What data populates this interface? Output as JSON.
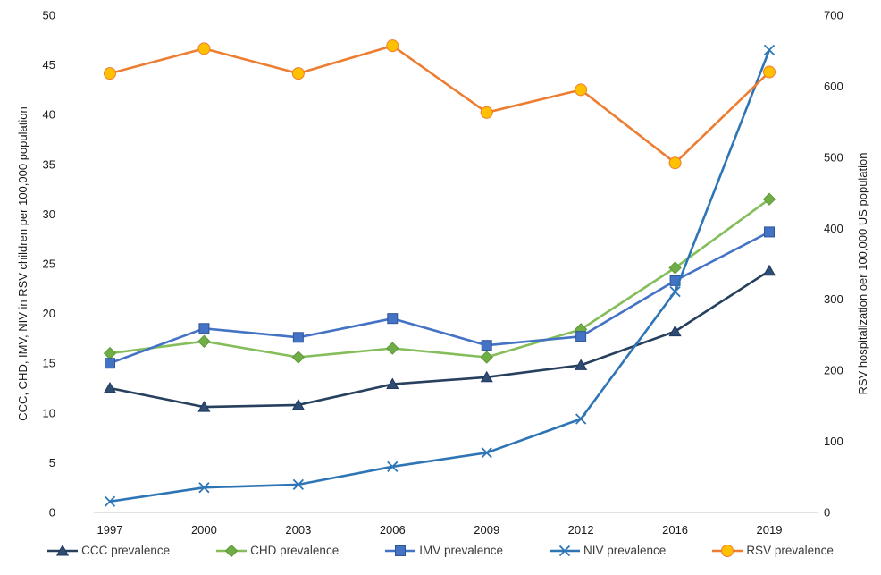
{
  "chart_data": {
    "type": "line",
    "title": "",
    "categories": [
      "1997",
      "2000",
      "2003",
      "2006",
      "2009",
      "2012",
      "2016",
      "2019"
    ],
    "axes": {
      "left": {
        "label": "CCC, CHD, IMV, NIV in RSV children per 100,000 population",
        "min": 0,
        "max": 50,
        "step": 5,
        "ticks": [
          "0",
          "5",
          "10",
          "15",
          "20",
          "25",
          "30",
          "35",
          "40",
          "45",
          "50"
        ]
      },
      "right": {
        "label": "RSV hospitalization oer 100,000 US population",
        "min": 0,
        "max": 700,
        "step": 100,
        "ticks": [
          "0",
          "100",
          "200",
          "300",
          "400",
          "500",
          "600",
          "700"
        ]
      }
    },
    "series": [
      {
        "name": "CCC prevalence",
        "axis": "left",
        "marker": "triangle",
        "line_color": "#26405E",
        "marker_fill": "#2E4D71",
        "marker_stroke": "#1F3864",
        "values": [
          12.5,
          10.6,
          10.8,
          12.9,
          13.6,
          14.8,
          18.2,
          24.3
        ]
      },
      {
        "name": "CHD prevalence",
        "axis": "left",
        "marker": "diamond",
        "line_color": "#84BD5A",
        "marker_fill": "#70AD47",
        "marker_stroke": "#5E9937",
        "values": [
          16.0,
          17.2,
          15.6,
          16.5,
          15.6,
          18.4,
          24.6,
          31.5
        ]
      },
      {
        "name": "IMV prevalence",
        "axis": "left",
        "marker": "square",
        "line_color": "#4472C4",
        "marker_fill": "#4472C4",
        "marker_stroke": "#2F5597",
        "values": [
          15.0,
          18.5,
          17.6,
          19.5,
          16.8,
          17.7,
          23.3,
          28.2
        ]
      },
      {
        "name": "NIV prevalence",
        "axis": "left",
        "marker": "x",
        "line_color": "#2E75B6",
        "marker_fill": "#2E75B6",
        "marker_stroke": "#2E75B6",
        "values": [
          1.1,
          2.5,
          2.8,
          4.6,
          6.0,
          9.4,
          22.2,
          46.5
        ]
      },
      {
        "name": "RSV prevalence",
        "axis": "right",
        "marker": "circle",
        "line_color": "#ED7D31",
        "marker_fill": "#FFC000",
        "marker_stroke": "#ED7D31",
        "values": [
          618,
          653,
          618,
          657,
          563,
          595,
          492,
          620
        ]
      }
    ],
    "grid": false,
    "legend_position": "bottom"
  },
  "colors": {
    "axis_line": "#D9D9D9",
    "tick_text": "#1a1a1a",
    "legend_text": "#3b3b3b"
  }
}
